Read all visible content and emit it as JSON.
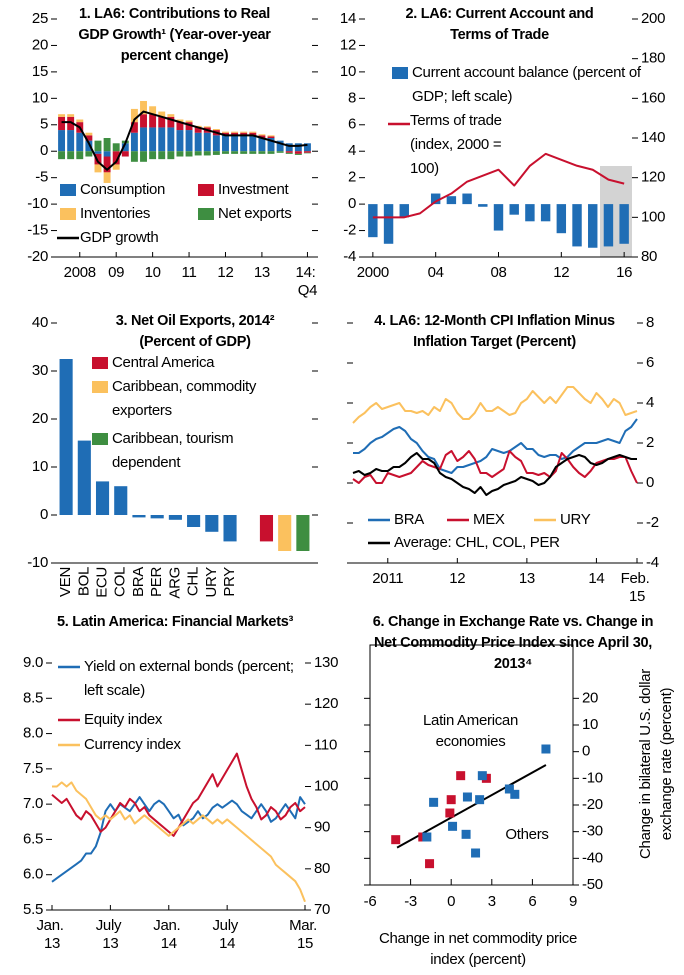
{
  "chart_data": [
    {
      "type": "stacked_bar",
      "title": "1. LA6: Contributions to Real GDP Growth¹ (Year-over-year percent change)",
      "categories": [
        null,
        null,
        "2008",
        null,
        null,
        null,
        "09",
        null,
        null,
        null,
        "10",
        null,
        null,
        null,
        "11",
        null,
        null,
        null,
        "12",
        null,
        null,
        null,
        "13",
        null,
        null,
        null,
        null,
        "14: Q4"
      ],
      "series": [
        {
          "name": "Consumption",
          "color": "#1f6db5",
          "values": [
            4,
            4,
            3.5,
            2,
            -0.5,
            -1,
            0,
            1.5,
            3.5,
            4.5,
            4.5,
            4.5,
            4.5,
            4,
            4,
            3.5,
            3.5,
            3,
            3,
            3,
            3,
            3,
            2.5,
            2.5,
            2,
            1.5,
            1.5,
            1.5
          ]
        },
        {
          "name": "Investment",
          "color": "#c8102e",
          "values": [
            2.5,
            2.5,
            2,
            1,
            -2,
            -3,
            -2.5,
            -1,
            2,
            2.5,
            2.5,
            2,
            2,
            1.5,
            1.5,
            1,
            1,
            1,
            0.5,
            0.5,
            0.5,
            0.5,
            0.5,
            0.3,
            0,
            -0.3,
            -0.5,
            -0.3
          ]
        },
        {
          "name": "Inventories",
          "color": "#fbc15e",
          "values": [
            0.5,
            0.5,
            0.5,
            0.5,
            -1.5,
            -2,
            -1,
            0,
            2.5,
            2.5,
            1.5,
            1,
            0.5,
            0.5,
            0.3,
            0.3,
            0.2,
            0.2,
            0.2,
            0.2,
            0.2,
            0.2,
            0.2,
            0.2,
            0,
            0,
            0,
            0
          ]
        },
        {
          "name": "Net exports",
          "color": "#3e8e41",
          "values": [
            -1.5,
            -1.5,
            -1.5,
            -1,
            2,
            2.5,
            1.5,
            0.5,
            -2,
            -2,
            -1.5,
            -1.5,
            -1.5,
            -1,
            -1,
            -0.8,
            -0.8,
            -0.7,
            -0.5,
            -0.5,
            -0.5,
            -0.5,
            -0.5,
            -0.5,
            -0.3,
            -0.2,
            -0.2,
            -0.1
          ]
        },
        {
          "name": "GDP growth",
          "color": "#000000",
          "type": "line",
          "values": [
            5.5,
            5.5,
            4.5,
            1.5,
            -2,
            -3.5,
            -2,
            1.5,
            6,
            7.5,
            7,
            6.5,
            6,
            5.5,
            5,
            4.5,
            4,
            3.5,
            3,
            3,
            3,
            3,
            2.5,
            2,
            1.5,
            1,
            1,
            1.2
          ]
        }
      ],
      "ylim": [
        -20,
        25
      ],
      "yticks": [
        -20,
        -15,
        -10,
        -5,
        0,
        5,
        10,
        15,
        20,
        25
      ],
      "legend": "lower left"
    },
    {
      "type": "bar_line",
      "title": "2. LA6: Current Account and Terms of Trade",
      "categories": [
        "2000",
        null,
        null,
        null,
        "04",
        null,
        null,
        null,
        "08",
        null,
        null,
        null,
        "12",
        null,
        null,
        null,
        "16"
      ],
      "series": [
        {
          "name": "Current account balance (percent of GDP; left scale)",
          "color": "#1f6db5",
          "type": "bar",
          "values": [
            -2.5,
            -3,
            -1,
            0,
            0.8,
            0.6,
            0.8,
            -0.2,
            -2,
            -0.8,
            -1.3,
            -1.3,
            -2.2,
            -3.2,
            -3.3,
            -3.2,
            -3
          ]
        },
        {
          "name": "Terms of trade (index, 2000 = 100)",
          "color": "#c8102e",
          "type": "line",
          "axis": "y2",
          "values": [
            100,
            100,
            100,
            102,
            108,
            112,
            118,
            121,
            124,
            116,
            126,
            132,
            129,
            126,
            124,
            119,
            117
          ]
        }
      ],
      "ylim": [
        -4,
        14
      ],
      "yticks": [
        -4,
        -2,
        0,
        2,
        4,
        6,
        8,
        10,
        12,
        14
      ],
      "y2lim": [
        80,
        200
      ],
      "y2ticks": [
        80,
        100,
        120,
        140,
        160,
        180,
        200
      ],
      "legend": "upper left"
    },
    {
      "type": "bar",
      "title": "3. Net Oil Exports, 2014² (Percent of GDP)",
      "categories": [
        "VEN",
        "BOL",
        "ECU",
        "COL",
        "BRA",
        "PER",
        "ARG",
        "CHL",
        "URY",
        "PRY",
        null,
        null,
        null,
        null
      ],
      "values": [
        32.5,
        15.5,
        7,
        6,
        -0.5,
        -0.7,
        -1,
        -2.5,
        -3.5,
        -5.5,
        null,
        -5.5,
        -7.5,
        -7.5
      ],
      "colors": [
        "#1f6db5",
        "#1f6db5",
        "#1f6db5",
        "#1f6db5",
        "#1f6db5",
        "#1f6db5",
        "#1f6db5",
        "#1f6db5",
        "#1f6db5",
        "#1f6db5",
        null,
        "#c8102e",
        "#fbc15e",
        "#3e8e41"
      ],
      "legend_items": [
        {
          "name": "Central America",
          "color": "#c8102e"
        },
        {
          "name": "Caribbean, commodity exporters",
          "color": "#fbc15e"
        },
        {
          "name": "Caribbean, tourism dependent",
          "color": "#3e8e41"
        }
      ],
      "ylim": [
        -10,
        40
      ],
      "yticks": [
        -10,
        0,
        10,
        20,
        30,
        40
      ],
      "legend": "upper right"
    },
    {
      "type": "line",
      "title": "4. LA6: 12-Month CPI Inflation Minus Inflation Target (Percent)",
      "categories": [
        null,
        null,
        null,
        null,
        null,
        null,
        "2011",
        null,
        null,
        null,
        null,
        null,
        null,
        null,
        null,
        null,
        null,
        null,
        "12",
        null,
        null,
        null,
        null,
        null,
        null,
        null,
        null,
        null,
        null,
        null,
        "13",
        null,
        null,
        null,
        null,
        null,
        null,
        null,
        null,
        null,
        null,
        null,
        "14",
        null,
        null,
        null,
        null,
        null,
        null,
        "Feb. 15"
      ],
      "series": [
        {
          "name": "BRA",
          "color": "#1f6db5",
          "values": [
            1.5,
            1.5,
            1.7,
            2.0,
            2.2,
            2.3,
            2.5,
            2.7,
            2.8,
            2.6,
            2.2,
            2.0,
            1.6,
            1.3,
            1.2,
            0.7,
            0.6,
            0.5,
            0.8,
            0.8,
            0.9,
            1.0,
            1.1,
            1.3,
            1.7,
            1.6,
            1.5,
            1.6,
            1.8,
            2.0,
            1.7,
            1.7,
            1.4,
            1.3,
            1.4,
            1.4,
            1.2,
            1.3,
            1.6,
            1.8,
            2.0,
            2.0,
            2.0,
            2.1,
            2.2,
            2.1,
            2.0,
            2.6,
            2.8,
            3.2
          ]
        },
        {
          "name": "MEX",
          "color": "#c8102e",
          "values": [
            0.2,
            0,
            0.3,
            0.4,
            0,
            0,
            0.5,
            0.4,
            0.3,
            0.4,
            0.5,
            0.8,
            1.1,
            0.9,
            0.8,
            0.7,
            1.4,
            1.6,
            1.1,
            1.3,
            1.6,
            1.2,
            0.5,
            0.5,
            0.3,
            0.5,
            0.7,
            1.6,
            1.3,
            1.1,
            0.5,
            0.5,
            0.4,
            0.5,
            0.3,
            0.6,
            1.5,
            1.2,
            0.8,
            0.5,
            0.3,
            0.6,
            1.0,
            1.1,
            1.2,
            1.2,
            1.3,
            1.3,
            0.6,
            0
          ]
        },
        {
          "name": "URY",
          "color": "#fbc15e",
          "values": [
            3.0,
            3.3,
            3.5,
            3.8,
            4.0,
            3.7,
            3.8,
            3.9,
            4.0,
            3.6,
            3.6,
            3.5,
            3.6,
            3.4,
            3.8,
            3.6,
            4.2,
            4.0,
            3.5,
            3.2,
            3.2,
            3.5,
            4.0,
            3.6,
            3.6,
            3.8,
            3.6,
            3.4,
            3.5,
            4.0,
            4.2,
            4.6,
            4.3,
            4.0,
            4.3,
            4.0,
            4.4,
            4.8,
            4.8,
            4.5,
            4.2,
            4.0,
            4.5,
            4.2,
            3.8,
            4.2,
            4.0,
            3.4,
            3.5,
            3.6
          ]
        },
        {
          "name": "Average: CHL, COL, PER",
          "color": "#000000",
          "values": [
            0.5,
            0.6,
            0.4,
            0.5,
            0.7,
            0.6,
            0.6,
            0.8,
            0.8,
            1.0,
            1.3,
            1.5,
            1.2,
            1.2,
            1.0,
            0.5,
            0.3,
            0.2,
            0,
            -0.2,
            -0.3,
            -0.5,
            -0.2,
            -0.6,
            -0.4,
            -0.3,
            -0.1,
            0,
            0.1,
            0.3,
            0.2,
            0.1,
            -0.1,
            0,
            0.3,
            0.8,
            1.0,
            1.2,
            1.3,
            1.4,
            1.3,
            1.0,
            0.9,
            1.0,
            1.2,
            1.3,
            1.4,
            1.3,
            1.2,
            1.2
          ]
        }
      ],
      "ylim": [
        -4,
        8
      ],
      "yticks": [
        -4,
        -2,
        0,
        2,
        4,
        6,
        8
      ],
      "yaxis": "right",
      "legend": "lower center"
    },
    {
      "type": "line",
      "title": "5. Latin America: Financial Markets³",
      "categories": [
        "Jan. 13",
        null,
        null,
        null,
        null,
        null,
        null,
        null,
        null,
        null,
        null,
        null,
        "July 13",
        null,
        null,
        null,
        null,
        null,
        null,
        null,
        null,
        null,
        null,
        null,
        "Jan. 14",
        null,
        null,
        null,
        null,
        null,
        null,
        null,
        null,
        null,
        null,
        null,
        "July 14",
        null,
        null,
        null,
        null,
        null,
        null,
        null,
        null,
        null,
        null,
        null,
        null,
        null,
        null,
        null,
        "Mar. 15"
      ],
      "series": [
        {
          "name": "Yield on external bonds (percent; left scale)",
          "color": "#1f6db5",
          "values": [
            5.9,
            5.95,
            6.0,
            6.05,
            6.1,
            6.15,
            6.2,
            6.3,
            6.3,
            6.4,
            6.6,
            6.9,
            7.0,
            6.9,
            7.0,
            6.95,
            6.9,
            7.0,
            7.1,
            7.0,
            6.9,
            7.0,
            7.05,
            7.0,
            6.9,
            6.8,
            6.85,
            6.7,
            6.75,
            6.8,
            6.9,
            6.8,
            6.85,
            6.95,
            7.0,
            6.95,
            7.0,
            7.05,
            7.0,
            6.9,
            6.85,
            6.8,
            6.9,
            7.0,
            6.9,
            6.75,
            6.8,
            6.9,
            7.0,
            6.9,
            6.8,
            7.1,
            7.0
          ]
        },
        {
          "name": "Equity index",
          "color": "#c8102e",
          "axis": "y2",
          "values": [
            98,
            97,
            96,
            97,
            95,
            93,
            92,
            94,
            93,
            91,
            89,
            90,
            92,
            94,
            96,
            95,
            97,
            96,
            94,
            95,
            93,
            92,
            91,
            90,
            89,
            88,
            90,
            92,
            94,
            96,
            97,
            99,
            101,
            103,
            100,
            102,
            104,
            106,
            108,
            104,
            100,
            97,
            95,
            92,
            93,
            95,
            94,
            92,
            93,
            95,
            96,
            94,
            95
          ]
        },
        {
          "name": "Currency index",
          "color": "#fbc15e",
          "axis": "y2",
          "values": [
            100,
            100,
            101,
            100,
            101,
            99,
            98,
            97,
            95,
            93,
            92,
            93,
            92,
            93,
            94,
            92,
            93,
            91,
            92,
            93,
            92,
            91,
            90,
            89,
            88,
            89,
            90,
            91,
            92,
            91,
            92,
            93,
            92,
            91,
            92,
            91,
            92,
            91,
            90,
            89,
            88,
            87,
            86,
            85,
            84,
            83,
            81,
            80,
            79,
            78,
            77,
            75,
            72
          ]
        }
      ],
      "ylim": [
        5.5,
        9
      ],
      "yticks": [
        {
          "value": 5.5,
          "label": "5.5"
        },
        {
          "value": 6,
          "label": "6.0"
        },
        {
          "value": 6.5,
          "label": "6.5"
        },
        {
          "value": 7,
          "label": "7.0"
        },
        {
          "value": 7.5,
          "label": "7.5"
        },
        {
          "value": 8,
          "label": "8.0"
        },
        {
          "value": 8.5,
          "label": "8.5"
        },
        {
          "value": 9,
          "label": "9.0"
        }
      ],
      "y2lim": [
        70,
        130
      ],
      "y2ticks": [
        70,
        80,
        90,
        100,
        110,
        120,
        130
      ],
      "legend": "upper left"
    },
    {
      "type": "scatter",
      "title": "6. Change in Exchange Rate vs. Change in Net Commodity Price Index since April 30, 2013⁴",
      "x_label": "Change in net commodity price index (percent)",
      "y_label": "Change in bilateral U.S. dollar exchange rate (percent)",
      "series": [
        {
          "name": "Latin American economies",
          "color": "#c8102e",
          "x": [
            0.7,
            2.6,
            0,
            -0.1,
            -4.1,
            -2.1,
            -1.6
          ],
          "values": [
            -9,
            -10,
            -18,
            -23,
            -33,
            -32,
            -42
          ]
        },
        {
          "name": "Others",
          "color": "#1f6db5",
          "x": [
            7,
            -1.3,
            1.2,
            2.3,
            2.1,
            4.3,
            4.7,
            0.1,
            1.1,
            1.8,
            -1.8
          ],
          "values": [
            1,
            -19,
            -17,
            -9,
            -18,
            -14,
            -16,
            -28,
            -31,
            -38,
            -32
          ]
        }
      ],
      "trend": {
        "x": [
          -4,
          7
        ],
        "y": [
          -36,
          -5
        ],
        "color": "#000000"
      },
      "xlim": [
        -6,
        9
      ],
      "xticks": [
        -6,
        -3,
        0,
        3,
        6,
        9
      ],
      "ylim": [
        -50,
        40
      ],
      "yticks": [
        -50,
        -40,
        -30,
        -20,
        -10,
        0,
        10,
        20
      ],
      "yaxis": "right"
    }
  ]
}
